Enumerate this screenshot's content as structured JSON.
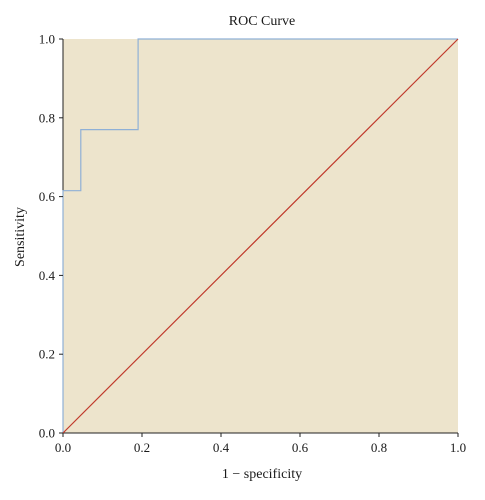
{
  "chart_data": {
    "type": "line",
    "title": "ROC Curve",
    "xlabel": "1 − specificity",
    "ylabel": "Sensitivity",
    "xlim": [
      0,
      1
    ],
    "ylim": [
      0,
      1
    ],
    "x_ticks": [
      "0.0",
      "0.2",
      "0.4",
      "0.6",
      "0.8",
      "1.0"
    ],
    "y_ticks": [
      "0.0",
      "0.2",
      "0.4",
      "0.6",
      "0.8",
      "1.0"
    ],
    "grid": false,
    "series": [
      {
        "x": [
          0.0,
          0.0,
          0.045,
          0.045,
          0.19,
          0.19,
          1.0
        ],
        "y": [
          0.0,
          0.615,
          0.615,
          0.77,
          0.77,
          1.0,
          1.0
        ],
        "color": "#8fb0d6"
      },
      {
        "x": [
          0.0,
          1.0
        ],
        "y": [
          0.0,
          1.0
        ],
        "color": "#c0392b"
      }
    ],
    "plot_background": "#ede4cc"
  }
}
